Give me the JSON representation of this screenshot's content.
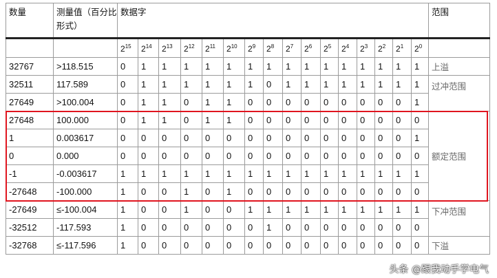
{
  "headers": {
    "count": "数量",
    "measured": "测量值（百分比形式）",
    "dataword": "数据字",
    "range": "范围"
  },
  "bit_exponents": [
    "15",
    "14",
    "13",
    "12",
    "11",
    "10",
    "9",
    "8",
    "7",
    "6",
    "5",
    "4",
    "3",
    "2",
    "1",
    "0"
  ],
  "bit_base": "2",
  "rows": [
    {
      "count": "32767",
      "measured": ">118.515",
      "bits": [
        "0",
        "1",
        "1",
        "1",
        "1",
        "1",
        "1",
        "1",
        "1",
        "1",
        "1",
        "1",
        "1",
        "1",
        "1",
        "1"
      ]
    },
    {
      "count": "32511",
      "measured": "117.589",
      "bits": [
        "0",
        "1",
        "1",
        "1",
        "1",
        "1",
        "1",
        "0",
        "1",
        "1",
        "1",
        "1",
        "1",
        "1",
        "1",
        "1"
      ]
    },
    {
      "count": "27649",
      "measured": ">100.004",
      "bits": [
        "0",
        "1",
        "1",
        "0",
        "1",
        "1",
        "0",
        "0",
        "0",
        "0",
        "0",
        "0",
        "0",
        "0",
        "0",
        "1"
      ]
    },
    {
      "count": "27648",
      "measured": "100.000",
      "bits": [
        "0",
        "1",
        "1",
        "0",
        "1",
        "1",
        "0",
        "0",
        "0",
        "0",
        "0",
        "0",
        "0",
        "0",
        "0",
        "0"
      ]
    },
    {
      "count": "1",
      "measured": "0.003617",
      "bits": [
        "0",
        "0",
        "0",
        "0",
        "0",
        "0",
        "0",
        "0",
        "0",
        "0",
        "0",
        "0",
        "0",
        "0",
        "0",
        "1"
      ]
    },
    {
      "count": "0",
      "measured": "0.000",
      "bits": [
        "0",
        "0",
        "0",
        "0",
        "0",
        "0",
        "0",
        "0",
        "0",
        "0",
        "0",
        "0",
        "0",
        "0",
        "0",
        "0"
      ]
    },
    {
      "count": "-1",
      "measured": "-0.003617",
      "bits": [
        "1",
        "1",
        "1",
        "1",
        "1",
        "1",
        "1",
        "1",
        "1",
        "1",
        "1",
        "1",
        "1",
        "1",
        "1",
        "1"
      ]
    },
    {
      "count": "-27648",
      "measured": "-100.000",
      "bits": [
        "1",
        "0",
        "0",
        "1",
        "0",
        "1",
        "0",
        "0",
        "0",
        "0",
        "0",
        "0",
        "0",
        "0",
        "0",
        "0"
      ]
    },
    {
      "count": "-27649",
      "measured": "≤-100.004",
      "bits": [
        "1",
        "0",
        "0",
        "1",
        "0",
        "0",
        "1",
        "1",
        "1",
        "1",
        "1",
        "1",
        "1",
        "1",
        "1",
        "1"
      ]
    },
    {
      "count": "-32512",
      "measured": "-117.593",
      "bits": [
        "1",
        "0",
        "0",
        "0",
        "0",
        "0",
        "0",
        "1",
        "0",
        "0",
        "0",
        "0",
        "0",
        "0",
        "0",
        "0"
      ]
    },
    {
      "count": "-32768",
      "measured": "≤-117.596",
      "bits": [
        "1",
        "0",
        "0",
        "0",
        "0",
        "0",
        "0",
        "0",
        "0",
        "0",
        "0",
        "0",
        "0",
        "0",
        "0",
        "0"
      ]
    }
  ],
  "ranges": [
    {
      "label": "上溢",
      "start": 0,
      "span": 1,
      "align": "middle"
    },
    {
      "label": "过冲范围",
      "start": 1,
      "span": 2,
      "align": "top"
    },
    {
      "label": "额定范围",
      "start": 3,
      "span": 5,
      "align": "middle"
    },
    {
      "label": "下冲范围",
      "start": 8,
      "span": 2,
      "align": "top"
    },
    {
      "label": "下溢",
      "start": 10,
      "span": 1,
      "align": "middle"
    }
  ],
  "highlight_color": "#e0141e",
  "watermark": "头条 @跟我动手学电气"
}
